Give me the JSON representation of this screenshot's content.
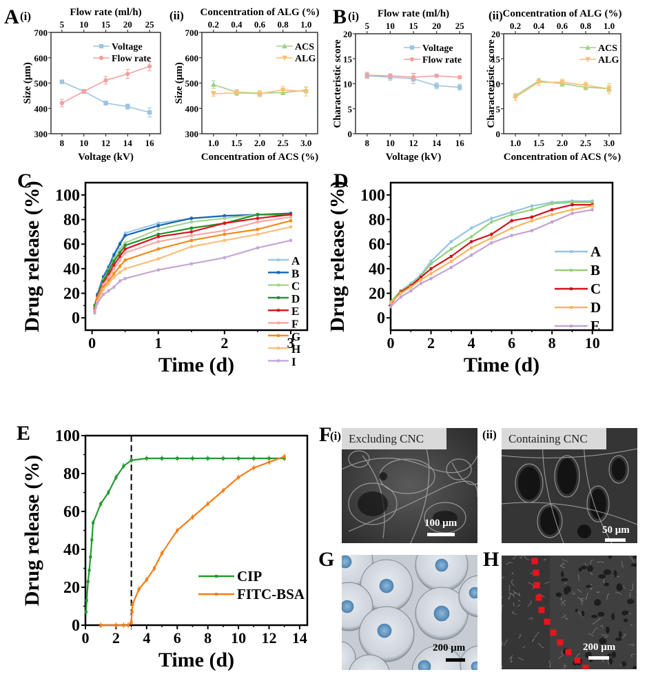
{
  "panel_labels": {
    "A": "A",
    "A_i": "(i)",
    "A_ii": "(ii)",
    "B": "B",
    "B_i": "(i)",
    "B_ii": "(ii)",
    "C": "C",
    "D": "D",
    "E": "E",
    "F": "F",
    "F_i": "(i)",
    "F_ii": "(ii)",
    "G": "G",
    "H": "H"
  },
  "chart_data": [
    {
      "id": "A_i",
      "type": "line",
      "xlabel": "Voltage (kV)",
      "x2label": "Flow rate (ml/h)",
      "ylabel": "Size (μm)",
      "x": [
        8,
        10,
        12,
        14,
        16
      ],
      "xticks": [
        "8",
        "10",
        "12",
        "14",
        "16"
      ],
      "x2ticks": [
        "5",
        "10",
        "15",
        "20",
        "25"
      ],
      "ylim": [
        300,
        700
      ],
      "yticks": [
        300,
        400,
        500,
        600,
        700
      ],
      "legend": "top-right",
      "series": [
        {
          "name": "Voltage",
          "marker": "square",
          "color": "#9cc5e0",
          "values": [
            505,
            467,
            421,
            407,
            384
          ],
          "errors": [
            5,
            6,
            8,
            10,
            18
          ]
        },
        {
          "name": "Flow rate",
          "marker": "circle",
          "color": "#f4a0a0",
          "values": [
            421,
            467,
            511,
            536,
            566
          ],
          "errors": [
            15,
            8,
            15,
            18,
            18
          ]
        }
      ]
    },
    {
      "id": "A_ii",
      "type": "line",
      "xlabel": "Concentration of ACS (%)",
      "x2label": "Concentration of ALG (%)",
      "ylabel": "Size (μm)",
      "x": [
        1.0,
        1.5,
        2.0,
        2.5,
        3.0
      ],
      "xticks": [
        "1.0",
        "1.5",
        "2.0",
        "2.5",
        "3.0"
      ],
      "x2ticks": [
        "0.2",
        "0.4",
        "0.6",
        "0.8",
        "1.0"
      ],
      "ylim": [
        300,
        700
      ],
      "yticks": [
        300,
        400,
        500,
        600,
        700
      ],
      "legend": "top-right",
      "series": [
        {
          "name": "ACS",
          "marker": "triangle-up",
          "color": "#9fd18a",
          "values": [
            494,
            464,
            460,
            462,
            472
          ],
          "errors": [
            15,
            10,
            10,
            8,
            12
          ]
        },
        {
          "name": "ALG",
          "marker": "triangle-down",
          "color": "#fbbf6e",
          "values": [
            458,
            461,
            458,
            473,
            467
          ],
          "errors": [
            10,
            10,
            12,
            14,
            18
          ]
        }
      ]
    },
    {
      "id": "B_i",
      "type": "line",
      "xlabel": "Voltage (kV)",
      "x2label": "Flow rate (ml/h)",
      "ylabel": "Characteristic score",
      "x": [
        8,
        10,
        12,
        14,
        16
      ],
      "xticks": [
        "8",
        "10",
        "12",
        "14",
        "16"
      ],
      "x2ticks": [
        "5",
        "10",
        "15",
        "20",
        "25"
      ],
      "ylim": [
        0,
        20
      ],
      "yticks": [
        0,
        5,
        10,
        15,
        20
      ],
      "legend": "top-right",
      "series": [
        {
          "name": "Voltage",
          "marker": "square",
          "color": "#9cc5e0",
          "values": [
            11.6,
            11.3,
            11.0,
            9.6,
            9.3
          ],
          "errors": [
            0.5,
            0.6,
            1.0,
            0.6,
            0.6
          ]
        },
        {
          "name": "Flow rate",
          "marker": "circle",
          "color": "#f4a0a0",
          "values": [
            11.7,
            11.6,
            11.3,
            11.6,
            11.3
          ],
          "errors": [
            0.6,
            0.4,
            0.8,
            0.3,
            0.3
          ]
        }
      ]
    },
    {
      "id": "B_ii",
      "type": "line",
      "xlabel": "Concentration of ACS (%)",
      "x2label": "Concentration of ALG (%)",
      "ylabel": "Characteristic score",
      "x": [
        1.0,
        1.5,
        2.0,
        2.5,
        3.0
      ],
      "xticks": [
        "1.0",
        "1.5",
        "2.0",
        "2.5",
        "3.0"
      ],
      "x2ticks": [
        "0.2",
        "0.4",
        "0.6",
        "0.8",
        "1.0"
      ],
      "ylim": [
        0,
        20
      ],
      "yticks": [
        0,
        5,
        10,
        15,
        20
      ],
      "legend": "top-right",
      "series": [
        {
          "name": "ACS",
          "marker": "triangle-up",
          "color": "#9fd18a",
          "values": [
            7.6,
            10.6,
            10.0,
            9.3,
            9.0
          ],
          "errors": [
            0.4,
            0.4,
            0.5,
            0.5,
            0.6
          ]
        },
        {
          "name": "ALG",
          "marker": "triangle-down",
          "color": "#fbbf6e",
          "values": [
            7.3,
            10.3,
            10.3,
            9.7,
            9.0
          ],
          "errors": [
            0.6,
            0.6,
            0.6,
            0.6,
            1.0
          ]
        }
      ]
    },
    {
      "id": "C",
      "type": "line",
      "xlabel": "Time (d)",
      "ylabel": "Drug release (%)",
      "x": [
        0.04,
        0.08,
        0.17,
        0.25,
        0.33,
        0.42,
        0.5,
        1,
        1.5,
        2,
        2.5,
        3
      ],
      "xlim": [
        -0.1,
        3.25
      ],
      "xticks": [
        0,
        1,
        2,
        3
      ],
      "ylim": [
        -10,
        110
      ],
      "yticks": [
        0,
        20,
        40,
        60,
        80,
        100
      ],
      "legend": "bottom-right",
      "series": [
        {
          "name": "A",
          "color": "#9cc8e6",
          "values": [
            7,
            19,
            34,
            42,
            52,
            61,
            69,
            77,
            81,
            83,
            84,
            85
          ]
        },
        {
          "name": "B",
          "color": "#1565b8",
          "values": [
            8,
            19,
            33,
            41,
            51,
            60,
            67,
            75,
            81,
            83,
            84,
            85
          ]
        },
        {
          "name": "C",
          "color": "#a6d48e",
          "values": [
            9,
            18,
            31,
            39,
            48,
            56,
            61,
            72,
            78,
            81,
            84,
            84
          ]
        },
        {
          "name": "D",
          "color": "#22912c",
          "values": [
            10,
            18,
            30,
            38,
            46,
            53,
            59,
            68,
            73,
            77,
            84,
            84
          ]
        },
        {
          "name": "E",
          "color": "#d9141e",
          "values": [
            7,
            17,
            28,
            35,
            43,
            50,
            56,
            66,
            70,
            77,
            81,
            84
          ]
        },
        {
          "name": "F",
          "color": "#f7a8a8",
          "values": [
            6,
            16,
            27,
            33,
            40,
            47,
            53,
            62,
            67,
            71,
            78,
            82
          ]
        },
        {
          "name": "G",
          "color": "#f48a14",
          "values": [
            5,
            15,
            25,
            30,
            36,
            42,
            47,
            56,
            63,
            68,
            72,
            79
          ]
        },
        {
          "name": "H",
          "color": "#fdbe78",
          "values": [
            4,
            13,
            23,
            28,
            33,
            37,
            40,
            48,
            58,
            63,
            68,
            74
          ]
        },
        {
          "name": "I",
          "color": "#c5a7d6",
          "values": [
            4,
            12,
            19,
            22,
            25,
            30,
            32,
            39,
            44,
            49,
            57,
            63
          ]
        }
      ]
    },
    {
      "id": "D",
      "type": "line",
      "xlabel": "Time (d)",
      "ylabel": "Drug release (%)",
      "x": [
        0,
        0.5,
        1,
        1.5,
        2,
        3,
        4,
        5,
        6,
        7,
        8,
        9,
        10
      ],
      "xlim": [
        0,
        11
      ],
      "xticks": [
        0,
        2,
        4,
        6,
        8,
        10
      ],
      "ylim": [
        -10,
        110
      ],
      "yticks": [
        0,
        20,
        40,
        60,
        80,
        100
      ],
      "legend": "right",
      "series": [
        {
          "name": "A",
          "color": "#93c4e4",
          "values": [
            13,
            22,
            28,
            35,
            46,
            62,
            73,
            81,
            86,
            91,
            94,
            95,
            95
          ]
        },
        {
          "name": "B",
          "color": "#94cf7b",
          "values": [
            13,
            22,
            27,
            34,
            44,
            56,
            66,
            78,
            84,
            88,
            93,
            94,
            94
          ]
        },
        {
          "name": "C",
          "color": "#d0101a",
          "values": [
            11,
            21,
            26,
            33,
            40,
            50,
            62,
            68,
            79,
            82,
            88,
            92,
            92
          ]
        },
        {
          "name": "D",
          "color": "#fdb35c",
          "values": [
            12,
            20,
            25,
            31,
            36,
            46,
            57,
            65,
            73,
            79,
            84,
            88,
            91
          ]
        },
        {
          "name": "E",
          "color": "#c3a2d2",
          "values": [
            9,
            17,
            22,
            28,
            32,
            41,
            51,
            61,
            67,
            71,
            78,
            85,
            88
          ]
        }
      ]
    },
    {
      "id": "E",
      "type": "line",
      "xlabel": "Time (d)",
      "ylabel": "Drug release (%)",
      "xlim": [
        0,
        14.5
      ],
      "xticks": [
        0,
        2,
        4,
        6,
        8,
        10,
        12,
        14
      ],
      "ylim": [
        0,
        100
      ],
      "yticks": [
        0,
        20,
        40,
        60,
        80,
        100
      ],
      "legend": "bottom-right",
      "annotations": [
        {
          "type": "vertical-dashed-line",
          "x": 3
        }
      ],
      "series": [
        {
          "name": "CIP",
          "color": "#239a2e",
          "x": [
            0.04,
            0.08,
            0.17,
            0.25,
            0.33,
            0.42,
            0.5,
            1,
            1.5,
            2,
            2.5,
            3,
            4,
            5,
            6,
            7,
            8,
            9,
            10,
            11,
            12,
            13
          ],
          "values": [
            7,
            13,
            23,
            29,
            36,
            45,
            54,
            64,
            70,
            78,
            84,
            87,
            88,
            88,
            88,
            88,
            88,
            88,
            88,
            88,
            88,
            88
          ]
        },
        {
          "name": "FITC-BSA",
          "color": "#f47d16",
          "x": [
            1,
            2,
            2.5,
            2.8,
            3,
            3.04,
            3.08,
            3.5,
            4,
            4.5,
            5,
            6,
            7,
            8,
            9,
            10,
            11,
            12,
            13
          ],
          "values": [
            0,
            0,
            0,
            0,
            1.5,
            7,
            11,
            19,
            24,
            30,
            38,
            50,
            57,
            64,
            71,
            78,
            83,
            86,
            89
          ]
        }
      ]
    }
  ],
  "images": {
    "F_i": {
      "caption": "Excluding CNC",
      "scalebar": "100 μm"
    },
    "F_ii": {
      "caption": "Containing CNC",
      "scalebar": "50 μm"
    },
    "G": {
      "scalebar": "200 μm"
    },
    "H": {
      "scalebar": "200 μm"
    }
  }
}
